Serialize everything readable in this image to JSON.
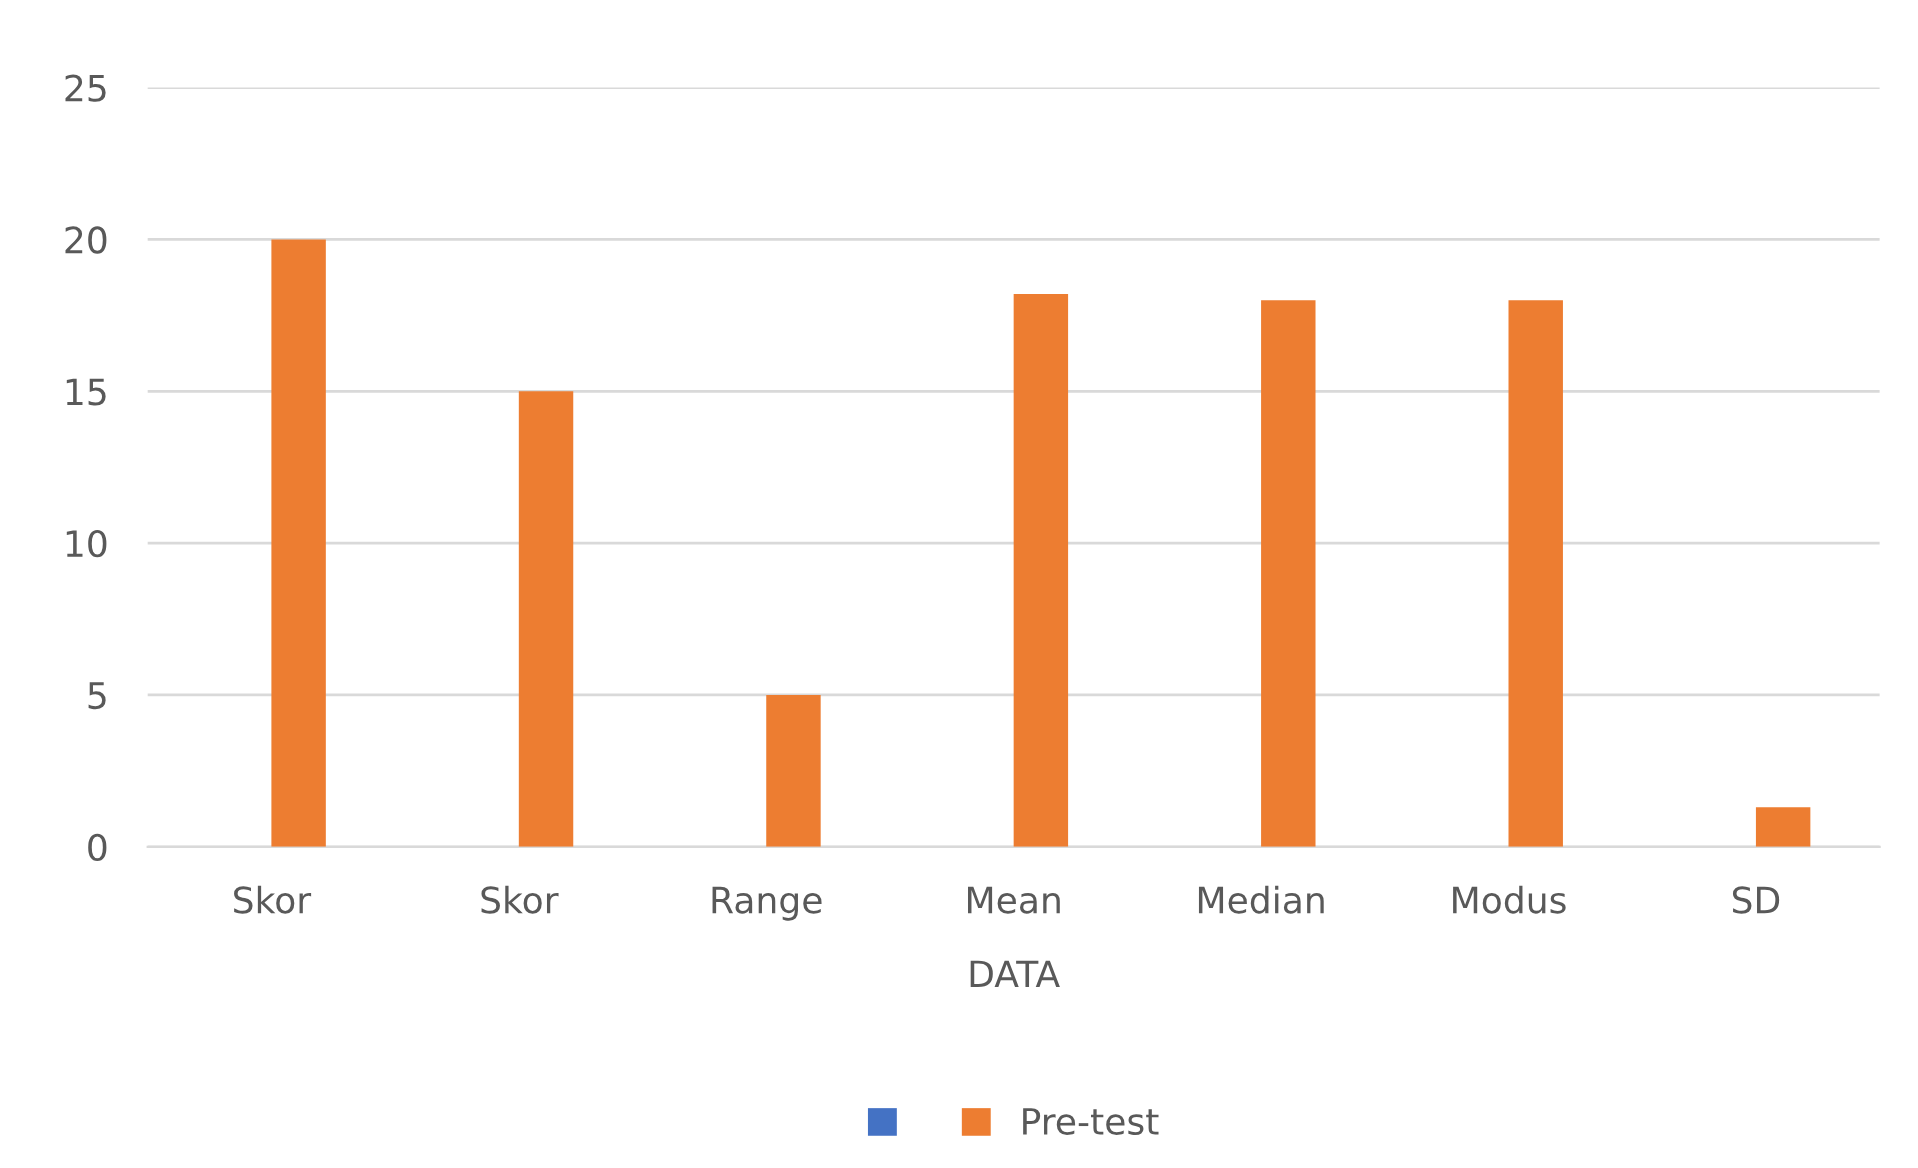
{
  "chart_data": {
    "type": "bar",
    "xlabel": "DATA",
    "categories": [
      "Skor",
      "Skor",
      "Range",
      "Mean",
      "Median",
      "Modus",
      "SD"
    ],
    "series": [
      {
        "color": "#4472c4",
        "values": [
          null,
          null,
          null,
          null,
          null,
          null,
          null
        ]
      },
      {
        "name": "Pre-test",
        "color": "#ed7d31",
        "values": [
          20,
          15,
          5,
          18.2,
          18,
          18,
          1.3
        ]
      }
    ],
    "ylim": [
      0,
      25
    ],
    "yticks": [
      0,
      5,
      10,
      15,
      20,
      25
    ],
    "grid": "y",
    "legend": "bottom"
  }
}
